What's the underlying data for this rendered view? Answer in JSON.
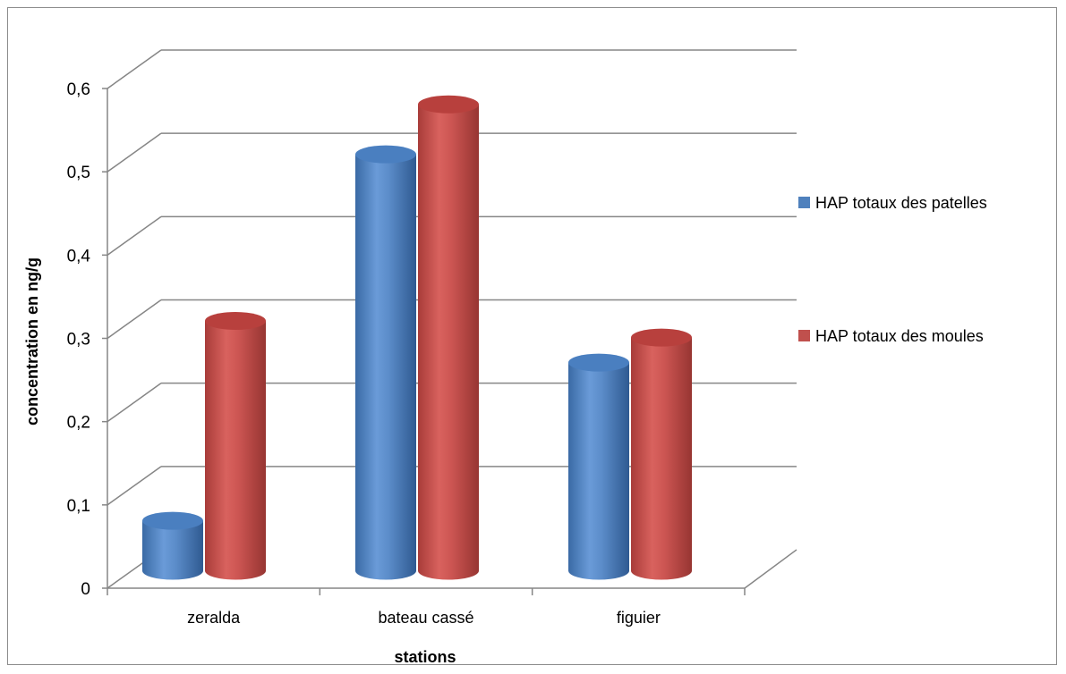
{
  "chart_data": {
    "type": "bar",
    "style": "3d-cylinder",
    "categories": [
      "zeralda",
      "bateau cassé",
      "figuier"
    ],
    "series": [
      {
        "name": "HAP totaux des patelles",
        "values": [
          0.06,
          0.5,
          0.25
        ],
        "color": "#4f81bd"
      },
      {
        "name": "HAP totaux des moules",
        "values": [
          0.3,
          0.56,
          0.28
        ],
        "color": "#c0504d"
      }
    ],
    "title": "",
    "xlabel": "stations",
    "ylabel": "concentration en ng/g",
    "ylim": [
      0,
      0.6
    ],
    "yticks": [
      "0",
      "0,1",
      "0,2",
      "0,3",
      "0,4",
      "0,5",
      "0,6"
    ],
    "grid": true,
    "legend_position": "right"
  }
}
